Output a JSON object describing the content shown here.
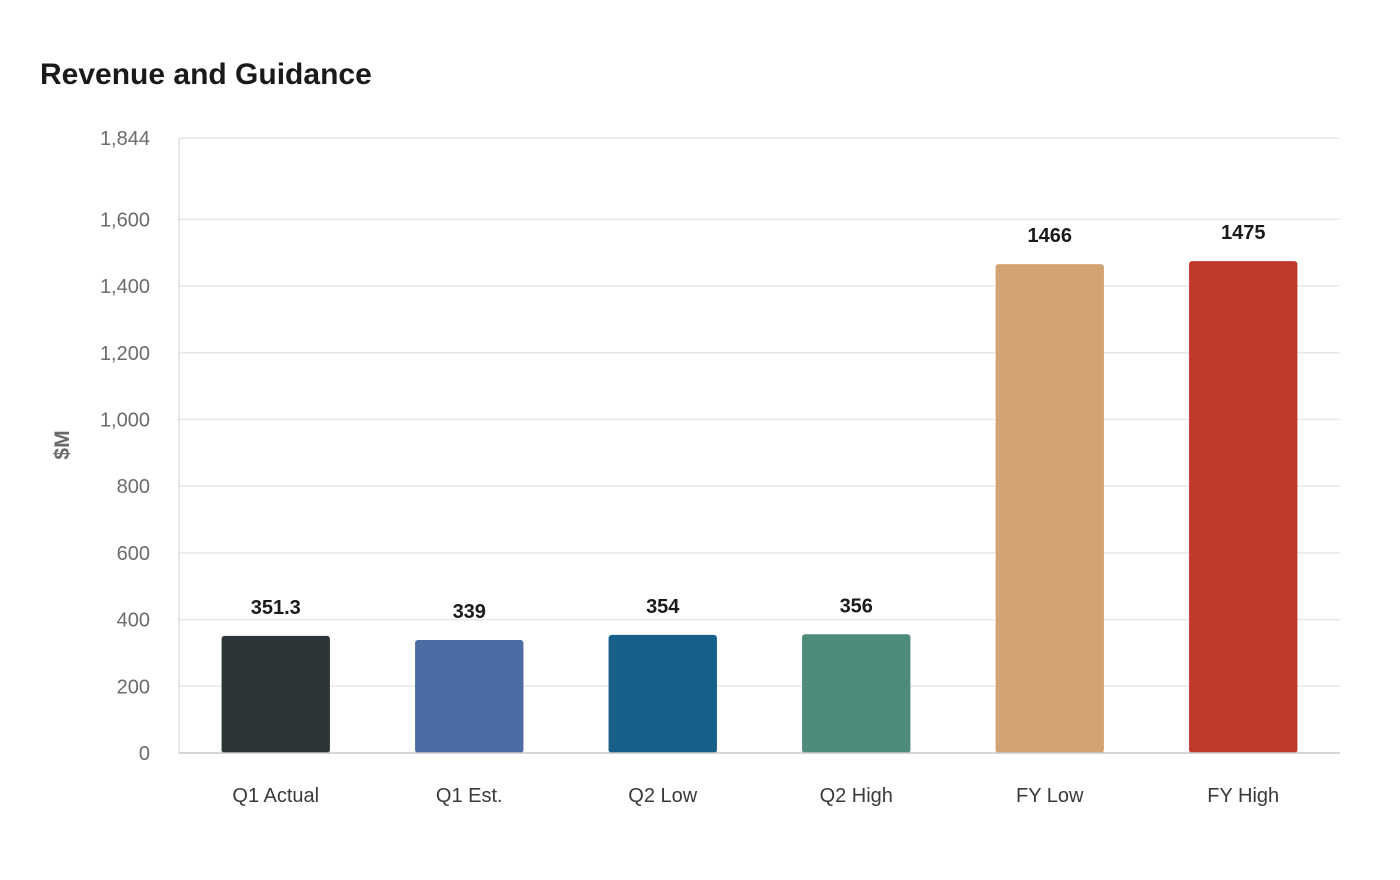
{
  "chart_data": {
    "type": "bar",
    "title": "Revenue and Guidance",
    "xlabel": "",
    "ylabel": "$M",
    "categories": [
      "Q1 Actual",
      "Q1 Est.",
      "Q2 Low",
      "Q2 High",
      "FY Low",
      "FY High"
    ],
    "values": [
      351.3,
      339,
      354,
      356,
      1466,
      1475
    ],
    "data_labels": [
      "351.3",
      "339",
      "354",
      "356",
      "1466",
      "1475"
    ],
    "colors": [
      "#2e3538",
      "#4a6ea3",
      "#17608a",
      "#4d8c7a",
      "#d4a373",
      "#c0392b"
    ],
    "ylim": [
      0,
      1844
    ],
    "yticks": [
      0,
      200,
      400,
      600,
      800,
      1000,
      1200,
      1400,
      1600,
      1844
    ],
    "ytick_labels": [
      "0",
      "200",
      "400",
      "600",
      "800",
      "1,000",
      "1,200",
      "1,400",
      "1,600",
      "1,844"
    ],
    "grid": true,
    "legend": "none"
  }
}
